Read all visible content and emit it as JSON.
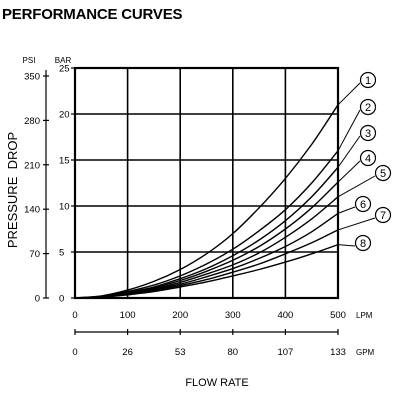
{
  "chart_data": {
    "type": "line",
    "title": "PERFORMANCE CURVES",
    "ylabel": "PRESSURE  DROP",
    "xlabel": "FLOW RATE",
    "y_axes": [
      {
        "unit": "PSI",
        "ticks": [
          0,
          70,
          140,
          210,
          280,
          350
        ],
        "range": [
          0,
          362.6
        ]
      },
      {
        "unit": "BAR",
        "ticks": [
          0,
          5,
          10,
          15,
          20,
          25
        ],
        "range": [
          0,
          25
        ]
      }
    ],
    "x_axes": [
      {
        "unit": "LPM",
        "ticks": [
          0,
          100,
          200,
          300,
          400,
          500
        ],
        "range": [
          0,
          500
        ]
      },
      {
        "unit": "GPM",
        "ticks": [
          0,
          26,
          53,
          80,
          107,
          133
        ],
        "range": [
          0,
          133
        ]
      }
    ],
    "ylim": [
      0,
      25
    ],
    "xlim": [
      0,
      500
    ],
    "grid": true,
    "series": [
      {
        "name": "1",
        "x": [
          0,
          50,
          100,
          150,
          200,
          250,
          300,
          350,
          400,
          450,
          500
        ],
        "y": [
          0,
          0.23,
          0.86,
          1.8,
          3.1,
          4.8,
          7.0,
          9.8,
          13.0,
          16.7,
          21.0
        ]
      },
      {
        "name": "2",
        "x": [
          0,
          50,
          100,
          150,
          200,
          250,
          300,
          350,
          400,
          450,
          500
        ],
        "y": [
          0,
          0.2,
          0.7,
          1.4,
          2.4,
          3.7,
          5.3,
          7.3,
          9.6,
          12.5,
          16.0
        ]
      },
      {
        "name": "3",
        "x": [
          0,
          50,
          100,
          150,
          200,
          250,
          300,
          350,
          400,
          450,
          500
        ],
        "y": [
          0,
          0.18,
          0.6,
          1.2,
          2.1,
          3.2,
          4.6,
          6.3,
          8.4,
          11.0,
          14.2
        ]
      },
      {
        "name": "4",
        "x": [
          0,
          50,
          100,
          150,
          200,
          250,
          300,
          350,
          400,
          450,
          500
        ],
        "y": [
          0,
          0.16,
          0.55,
          1.1,
          1.9,
          2.9,
          4.1,
          5.6,
          7.5,
          9.8,
          12.6
        ]
      },
      {
        "name": "5",
        "x": [
          0,
          50,
          100,
          150,
          200,
          250,
          300,
          350,
          400,
          450,
          500
        ],
        "y": [
          0,
          0.14,
          0.5,
          1.0,
          1.7,
          2.6,
          3.6,
          4.9,
          6.6,
          8.6,
          11.0
        ]
      },
      {
        "name": "6",
        "x": [
          0,
          50,
          100,
          150,
          200,
          250,
          300,
          350,
          400,
          450,
          500
        ],
        "y": [
          0,
          0.12,
          0.45,
          0.9,
          1.5,
          2.3,
          3.2,
          4.3,
          5.6,
          7.2,
          9.2
        ]
      },
      {
        "name": "7",
        "x": [
          0,
          50,
          100,
          150,
          200,
          250,
          300,
          350,
          400,
          450,
          500
        ],
        "y": [
          0,
          0.1,
          0.4,
          0.8,
          1.35,
          2.0,
          2.8,
          3.7,
          4.8,
          6.0,
          7.4
        ]
      },
      {
        "name": "8",
        "x": [
          0,
          50,
          100,
          150,
          200,
          250,
          300,
          350,
          400,
          450,
          500
        ],
        "y": [
          0,
          0.09,
          0.35,
          0.7,
          1.2,
          1.75,
          2.4,
          3.1,
          3.9,
          4.8,
          5.8
        ]
      }
    ]
  },
  "colors": {
    "line": "#000000",
    "background": "#ffffff"
  }
}
